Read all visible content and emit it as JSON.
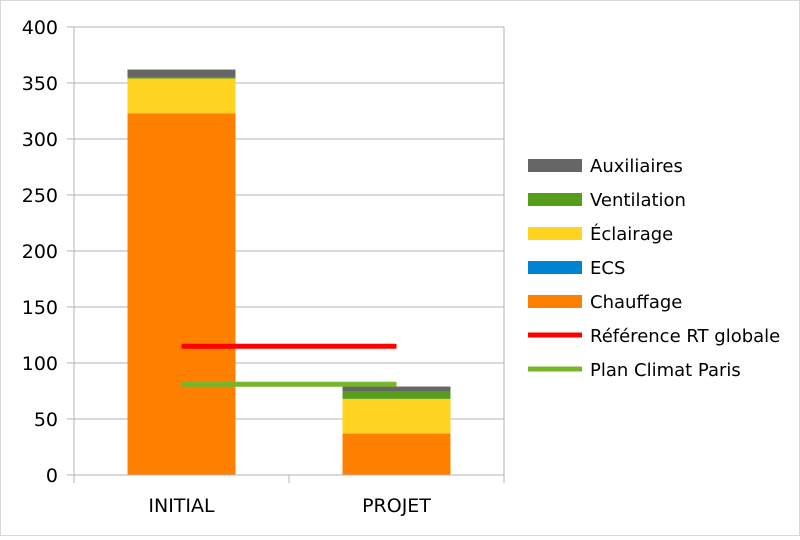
{
  "chart_data": {
    "type": "bar",
    "stacked": true,
    "categories": [
      "INITIAL",
      "PROJET"
    ],
    "ylim": [
      0,
      400
    ],
    "yticks": [
      0,
      50,
      100,
      150,
      200,
      250,
      300,
      350,
      400
    ],
    "grid": true,
    "legend_position": "right",
    "series": [
      {
        "name": "Chauffage",
        "color": "#ff8000",
        "values": [
          323,
          37
        ]
      },
      {
        "name": "ECS",
        "color": "#0084d1",
        "values": [
          0,
          0
        ]
      },
      {
        "name": "Éclairage",
        "color": "#ffd320",
        "values": [
          31,
          31
        ]
      },
      {
        "name": "Ventilation",
        "color": "#579d1c",
        "values": [
          1,
          7
        ]
      },
      {
        "name": "Auxiliaires",
        "color": "#666666",
        "values": [
          7,
          4
        ]
      }
    ],
    "lines": [
      {
        "name": "Référence RT globale",
        "color": "#ff0000",
        "value": 115
      },
      {
        "name": "Plan Climat Paris",
        "color": "#77b52b",
        "value": 81
      }
    ],
    "legend_order": [
      "Auxiliaires",
      "Ventilation",
      "Éclairage",
      "ECS",
      "Chauffage",
      "Référence RT globale",
      "Plan Climat Paris"
    ]
  }
}
